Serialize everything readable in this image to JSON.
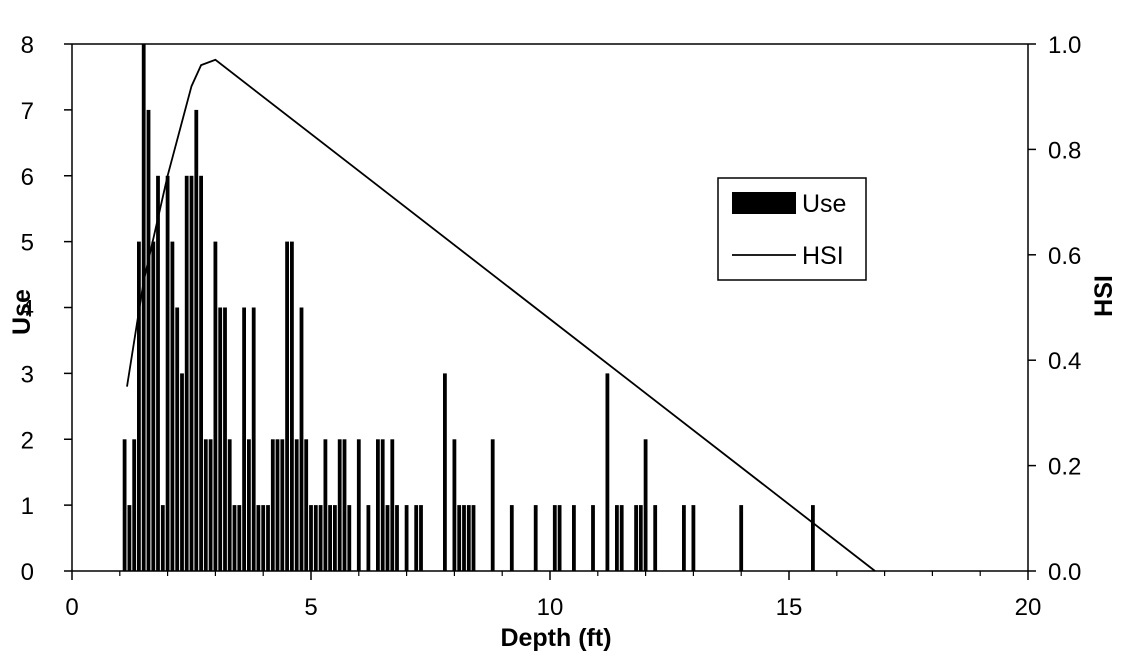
{
  "chart_data": {
    "type": "bar",
    "xlabel": "Depth (ft)",
    "ylabel": "Use",
    "y2label": "HSI",
    "xlim": [
      0,
      20
    ],
    "ylim": [
      0,
      8
    ],
    "y2lim": [
      0,
      1.0
    ],
    "x_ticks": [
      "0",
      "5",
      "10",
      "15",
      "20"
    ],
    "y_ticks": [
      "0",
      "1",
      "2",
      "3",
      "4",
      "5",
      "6",
      "7",
      "8"
    ],
    "y2_ticks": [
      "0.0",
      "0.2",
      "0.4",
      "0.6",
      "0.8",
      "1.0"
    ],
    "grid": false,
    "legend": {
      "position": "right",
      "entries": [
        "Use",
        "HSI"
      ]
    },
    "series": [
      {
        "name": "Use",
        "type": "bar",
        "color": "#000000",
        "x": [
          1.1,
          1.2,
          1.3,
          1.4,
          1.5,
          1.6,
          1.7,
          1.8,
          1.9,
          2.0,
          2.1,
          2.2,
          2.3,
          2.4,
          2.5,
          2.6,
          2.7,
          2.8,
          2.9,
          3.0,
          3.1,
          3.2,
          3.3,
          3.4,
          3.5,
          3.6,
          3.7,
          3.8,
          3.9,
          4.0,
          4.1,
          4.2,
          4.3,
          4.4,
          4.5,
          4.6,
          4.7,
          4.8,
          4.9,
          5.0,
          5.1,
          5.2,
          5.3,
          5.4,
          5.5,
          5.6,
          5.7,
          5.8,
          6.0,
          6.2,
          6.4,
          6.5,
          6.6,
          6.7,
          6.8,
          7.0,
          7.2,
          7.3,
          7.8,
          8.0,
          8.1,
          8.2,
          8.3,
          8.4,
          8.8,
          9.2,
          9.7,
          10.1,
          10.2,
          10.5,
          10.9,
          11.2,
          11.4,
          11.5,
          11.8,
          11.9,
          12.0,
          12.2,
          12.8,
          13.0,
          14.0,
          15.5
        ],
        "values": [
          2,
          1,
          2,
          5,
          8,
          7,
          5,
          6,
          1,
          6,
          5,
          4,
          3,
          6,
          6,
          7,
          6,
          2,
          2,
          5,
          4,
          4,
          2,
          1,
          1,
          4,
          2,
          4,
          1,
          1,
          1,
          2,
          2,
          2,
          5,
          5,
          2,
          4,
          2,
          1,
          1,
          1,
          2,
          1,
          1,
          2,
          2,
          1,
          2,
          1,
          2,
          2,
          1,
          2,
          1,
          1,
          1,
          1,
          3,
          2,
          1,
          1,
          1,
          1,
          2,
          1,
          1,
          1,
          1,
          1,
          1,
          3,
          1,
          1,
          1,
          1,
          2,
          1,
          1,
          1,
          1,
          1
        ]
      },
      {
        "name": "HSI",
        "type": "line",
        "color": "#000000",
        "x": [
          1.15,
          1.5,
          2.0,
          2.5,
          2.7,
          3.0,
          16.8
        ],
        "values": [
          0.35,
          0.55,
          0.75,
          0.92,
          0.96,
          0.97,
          0.0
        ]
      }
    ]
  }
}
